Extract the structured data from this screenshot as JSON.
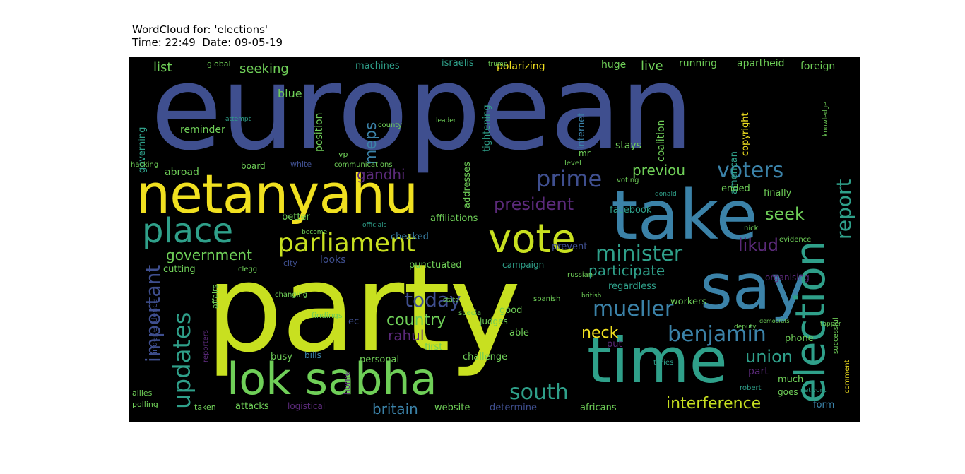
{
  "header": {
    "title": "WordCloud for: 'elections'",
    "subtitle": "Time: 22:49  Date: 09-05-19"
  },
  "colors": {
    "background": "#000000",
    "blue": "#3f4f8f",
    "teal": "#2fa08a",
    "steel": "#3b82a8",
    "yellow": "#f0e020",
    "lime": "#c8e020",
    "green": "#6fcf58",
    "purple": "#5b2a7a"
  },
  "words": {
    "european": "european",
    "party": "party",
    "netanyahu": "netanyahu",
    "take": "take",
    "time": "time",
    "say": "say",
    "lok_sabha": "lok sabha",
    "election": "election",
    "vote": "vote",
    "place": "place",
    "parliament": "parliament",
    "minister": "minister",
    "mueller": "mueller",
    "benjamin": "benjamin",
    "voters": "voters",
    "report": "report",
    "prime": "prime",
    "president": "president",
    "south": "south",
    "interference": "interference",
    "updates": "updates",
    "important": "important",
    "today": "today",
    "country": "country",
    "neck": "neck",
    "union": "union",
    "seek": "seek",
    "likud": "likud",
    "participate": "participate",
    "previou": "previou",
    "government": "government",
    "britain": "britain",
    "rahul": "rahul",
    "gandhi": "gandhi",
    "meps": "meps",
    "seeking": "seeking",
    "list": "list",
    "blue": "blue",
    "live": "live",
    "running": "running",
    "apartheid": "apartheid",
    "foreign": "foreign",
    "huge": "huge",
    "polarizing": "polarizing",
    "machines": "machines",
    "israelis": "israelis",
    "global": "global",
    "reminder": "reminder",
    "governing": "governing",
    "position": "position",
    "tightening": "tightening",
    "internet": "internet",
    "stays": "stays",
    "coalition": "coalition",
    "copyright": "copyright",
    "american": "american",
    "facebook": "facebook",
    "ended": "ended",
    "finally": "finally",
    "abroad": "abroad",
    "board": "board",
    "addresses": "addresses",
    "affiliations": "affiliations",
    "checked": "checked",
    "better": "better",
    "looks": "looks",
    "punctuated": "punctuated",
    "campaign": "campaign",
    "prevent": "prevent",
    "regardless": "regardless",
    "workers": "workers",
    "cutting": "cutting",
    "good": "good",
    "able": "able",
    "judges": "judges",
    "first": "first",
    "challenge": "challenge",
    "personal": "personal",
    "bills": "bills",
    "busy": "busy",
    "website": "website",
    "determine": "determine",
    "africans": "africans",
    "form": "form",
    "phone": "phone",
    "part": "part",
    "much": "much",
    "goes": "goes",
    "put": "put",
    "attacks": "attacks",
    "logistical": "logistical",
    "taken": "taken",
    "polling": "polling",
    "allies": "allies",
    "organising": "organising",
    "ec": "ec",
    "mr": "mr",
    "vp": "vp",
    "home": "home",
    "city": "city",
    "findings": "findings",
    "communications": "communications",
    "white": "white",
    "county": "county",
    "russian": "russian",
    "robert": "robert",
    "nick": "nick",
    "evidence": "evidence",
    "spanish": "spanish",
    "special": "special",
    "changing": "changing",
    "clegg": "clegg",
    "trump": "trump",
    "leader": "leader",
    "voting": "voting",
    "level": "level",
    "donald": "donald",
    "knowledge": "knowledge",
    "tapper": "tapper",
    "tories": "tories",
    "successful": "successful",
    "comment": "comment",
    "network": "network",
    "deputy": "deputy",
    "democrats": "democrats",
    "independence": "independence",
    "reporters": "reporters",
    "affairs": "affairs",
    "officials": "officials",
    "become": "become",
    "state": "state",
    "british": "british",
    "hacking": "hacking",
    "attempt": "attempt"
  }
}
